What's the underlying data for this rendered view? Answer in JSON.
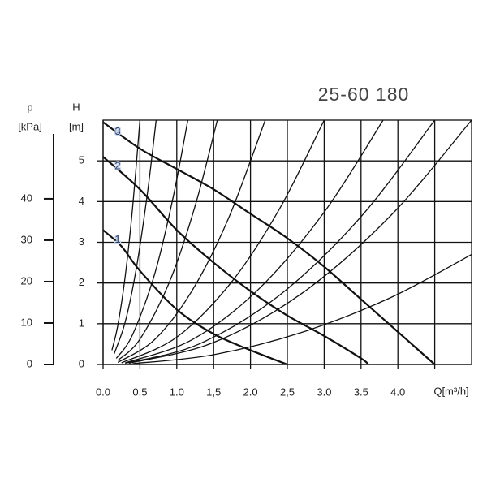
{
  "chart_data": {
    "type": "line",
    "title": "25-60 180",
    "x_label": "Q[m³/h]",
    "y_label": "H",
    "y_unit": "[m]",
    "y2_label": "p",
    "y2_unit": "[kPa]",
    "xlim": [
      0,
      5
    ],
    "ylim": [
      0,
      6
    ],
    "y2lim": [
      0,
      59
    ],
    "xticks": [
      {
        "value": 0,
        "label": "0.0"
      },
      {
        "value": 0.5,
        "label": "0,5"
      },
      {
        "value": 1,
        "label": "1.0"
      },
      {
        "value": 1.5,
        "label": "1,5"
      },
      {
        "value": 2,
        "label": "2.0"
      },
      {
        "value": 2.5,
        "label": "2,5"
      },
      {
        "value": 3,
        "label": "3.0"
      },
      3.5,
      {
        "value": 4,
        "label": "4.0"
      },
      {
        "value": 4.5,
        "label": null
      }
    ],
    "yticks": [
      0,
      1,
      2,
      3,
      4,
      5
    ],
    "y2ticks": [
      0,
      10,
      20,
      30,
      40
    ],
    "grid": true,
    "color": "#111111",
    "series": [
      {
        "name": "1",
        "x": [
          0,
          0.25,
          0.5,
          1.0,
          1.5,
          2.0,
          2.5
        ],
        "values": [
          3.3,
          2.9,
          2.3,
          1.35,
          0.75,
          0.35,
          0
        ]
      },
      {
        "name": "2",
        "x": [
          0,
          0.5,
          1.0,
          1.5,
          2.0,
          2.5,
          3.0,
          3.5,
          3.6
        ],
        "values": [
          5.1,
          4.3,
          3.3,
          2.5,
          1.8,
          1.2,
          0.7,
          0.15,
          0
        ]
      },
      {
        "name": "3",
        "x": [
          0,
          0.5,
          1.0,
          1.5,
          2.0,
          2.5,
          3.0,
          3.5,
          4.0,
          4.5
        ],
        "values": [
          5.95,
          5.3,
          4.8,
          4.3,
          3.7,
          3.1,
          2.4,
          1.6,
          0.8,
          0
        ]
      },
      {
        "x": [
          0.12,
          0.2,
          0.3,
          0.4,
          0.5
        ],
        "values": [
          0.35,
          0.96,
          2.16,
          3.84,
          6
        ]
      },
      {
        "x": [
          0.15,
          0.3,
          0.45,
          0.6,
          0.72
        ],
        "values": [
          0.26,
          1.04,
          2.35,
          4.18,
          6
        ]
      },
      {
        "x": [
          0.18,
          0.4,
          0.7,
          0.95,
          1.15
        ],
        "values": [
          0.15,
          0.73,
          2.22,
          4.1,
          6
        ]
      },
      {
        "x": [
          0.2,
          0.5,
          0.9,
          1.25,
          1.55
        ],
        "values": [
          0.1,
          0.62,
          2.02,
          3.9,
          6
        ]
      },
      {
        "x": [
          0.2,
          0.7,
          1.2,
          1.7,
          2.2
        ],
        "values": [
          0.05,
          0.61,
          1.79,
          3.58,
          6
        ]
      },
      {
        "x": [
          0.25,
          1.0,
          1.75,
          2.4,
          3.0
        ],
        "values": [
          0.04,
          0.67,
          2.04,
          3.84,
          6
        ]
      },
      {
        "x": [
          0.3,
          1.2,
          2.1,
          3.0,
          3.8
        ],
        "values": [
          0.04,
          0.6,
          1.83,
          3.74,
          6
        ]
      },
      {
        "x": [
          0.3,
          1.3,
          2.4,
          3.5,
          4.5
        ],
        "values": [
          0.03,
          0.5,
          1.71,
          3.63,
          6
        ]
      },
      {
        "x": [
          0.35,
          1.5,
          2.7,
          3.9,
          5.0
        ],
        "values": [
          0.03,
          0.54,
          1.75,
          3.65,
          6
        ]
      },
      {
        "x": [
          0.4,
          1.5,
          2.7,
          3.9,
          5.0
        ],
        "values": [
          0.02,
          0.24,
          0.79,
          1.64,
          2.7
        ]
      }
    ]
  }
}
